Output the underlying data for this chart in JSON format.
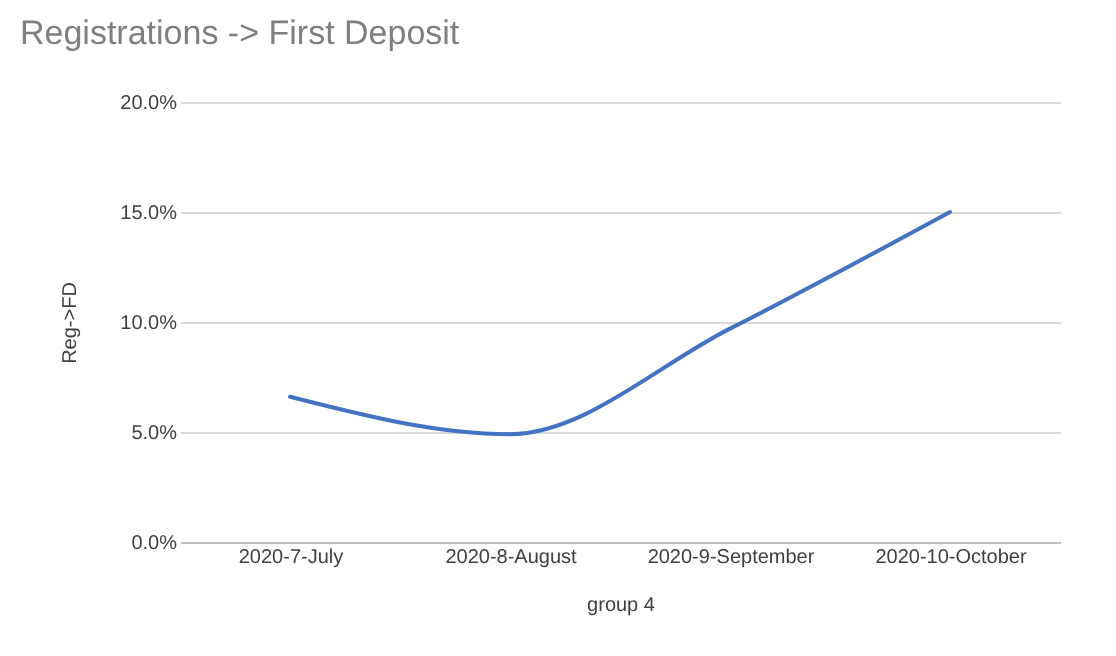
{
  "chart_data": {
    "type": "line",
    "title": "Registrations -> First Deposit",
    "xlabel": "group 4",
    "ylabel": "Reg->FD",
    "categories": [
      "2020-7-July",
      "2020-8-August",
      "2020-9-September",
      "2020-10-October"
    ],
    "series": [
      {
        "color": "#4472c4",
        "values": [
          6.6,
          4.9,
          9.7,
          15.0
        ]
      }
    ],
    "ylim": [
      0,
      20
    ],
    "yticks": [
      {
        "value": 0,
        "label": "0.0%"
      },
      {
        "value": 5,
        "label": "5.0%"
      },
      {
        "value": 10,
        "label": "10.0%"
      },
      {
        "value": 15,
        "label": "15.0%"
      },
      {
        "value": 20,
        "label": "20.0%"
      }
    ],
    "grid": "y",
    "marker": "none",
    "line_style": "solid"
  }
}
